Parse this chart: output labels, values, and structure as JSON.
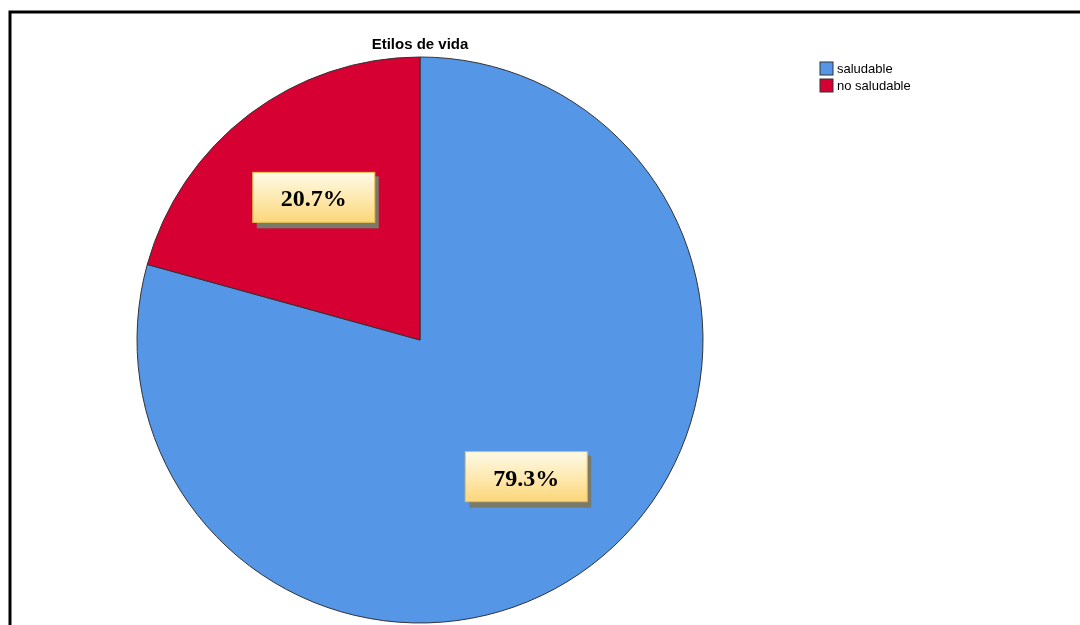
{
  "chart_data": {
    "type": "pie",
    "title": "Etilos de vida",
    "categories": [
      "saludable",
      "no saludable"
    ],
    "values": [
      79.3,
      20.7
    ],
    "colors": [
      "#5596e6",
      "#d60032"
    ],
    "value_labels": [
      "79.3%",
      "20.7%"
    ],
    "legend": "top right"
  }
}
